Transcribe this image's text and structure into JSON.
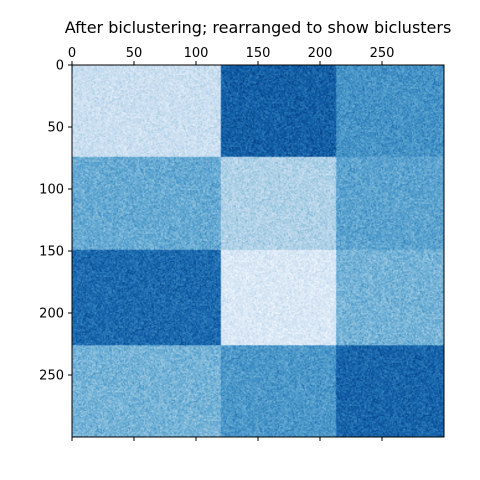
{
  "chart_data": {
    "type": "heatmap",
    "title": "After biclustering; rearranged to show biclusters",
    "xlabel": "",
    "ylabel": "",
    "xlim": [
      0,
      300
    ],
    "ylim": [
      300,
      0
    ],
    "x_ticks": [
      0,
      50,
      100,
      150,
      200,
      250
    ],
    "y_ticks": [
      0,
      50,
      100,
      150,
      200,
      250
    ],
    "x_axis_position": "top",
    "colormap": "Blues",
    "grid": false,
    "column_blocks": [
      [
        0,
        120
      ],
      [
        120,
        213
      ],
      [
        213,
        300
      ]
    ],
    "row_blocks": [
      [
        0,
        74
      ],
      [
        74,
        149
      ],
      [
        149,
        226
      ],
      [
        226,
        300
      ]
    ],
    "block_intensity": [
      [
        0.22,
        0.82,
        0.62
      ],
      [
        0.52,
        0.32,
        0.55
      ],
      [
        0.78,
        0.15,
        0.48
      ],
      [
        0.48,
        0.6,
        0.8
      ]
    ],
    "noise_amplitude": 0.16
  }
}
